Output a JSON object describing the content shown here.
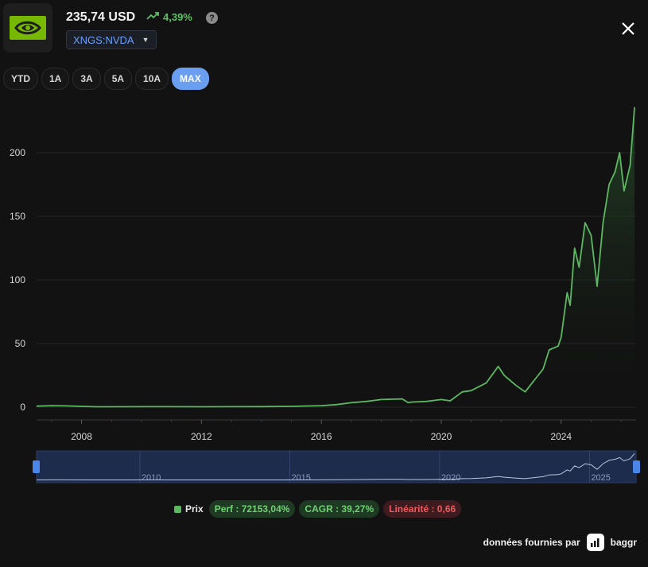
{
  "header": {
    "logo_icon": "nvidia-logo-icon",
    "price": "235,74 USD",
    "change": "4,39%",
    "change_icon": "trend-up-icon",
    "help_icon": "question-circle-icon",
    "ticker": "XNGS:NVDA",
    "ticker_caret_icon": "chevron-down-icon",
    "close_icon": "close-icon"
  },
  "ranges": [
    {
      "label": "YTD",
      "active": false
    },
    {
      "label": "1A",
      "active": false
    },
    {
      "label": "3A",
      "active": false
    },
    {
      "label": "5A",
      "active": false
    },
    {
      "label": "10A",
      "active": false
    },
    {
      "label": "MAX",
      "active": true
    }
  ],
  "chart_data": {
    "type": "area",
    "series": [
      {
        "name": "Prix",
        "color": "#5cb860",
        "x": [
          2006.5,
          2007.0,
          2007.5,
          2008.0,
          2008.5,
          2009.0,
          2010.0,
          2011.0,
          2012.0,
          2013.0,
          2014.0,
          2015.0,
          2016.0,
          2016.5,
          2017.0,
          2017.5,
          2018.0,
          2018.7,
          2018.9,
          2019.0,
          2019.5,
          2020.0,
          2020.3,
          2020.7,
          2021.0,
          2021.5,
          2021.9,
          2022.1,
          2022.5,
          2022.8,
          2023.0,
          2023.4,
          2023.6,
          2023.9,
          2024.0,
          2024.2,
          2024.3,
          2024.45,
          2024.6,
          2024.8,
          2025.0,
          2025.2,
          2025.4,
          2025.6,
          2025.8,
          2025.95,
          2026.1,
          2026.3,
          2026.45
        ],
        "y": [
          0.8,
          1.2,
          1.0,
          0.6,
          0.3,
          0.3,
          0.4,
          0.4,
          0.3,
          0.35,
          0.45,
          0.6,
          1.2,
          2.0,
          3.5,
          4.5,
          6.0,
          6.5,
          3.5,
          4.0,
          4.5,
          6.0,
          5.0,
          12.0,
          13.0,
          19.0,
          32.0,
          25.0,
          17.0,
          12.0,
          18.0,
          30.0,
          45.0,
          48.0,
          55.0,
          90.0,
          80.0,
          125.0,
          110.0,
          145.0,
          135.0,
          95.0,
          145.0,
          175.0,
          185.0,
          200.0,
          170.0,
          190.0,
          235.74
        ]
      }
    ],
    "y_ticks": [
      0,
      50,
      100,
      150,
      200
    ],
    "x_ticks": [
      2008,
      2012,
      2016,
      2020,
      2024
    ],
    "xlim": [
      2006.5,
      2026.5
    ],
    "ylim": [
      -10,
      245
    ],
    "grid": true,
    "navigator": {
      "x_ticks": [
        2010,
        2015,
        2020,
        2025
      ],
      "xlim": [
        2006.5,
        2026.5
      ]
    }
  },
  "footer": {
    "series_label": "Prix",
    "perf": "Perf : 72153,04%",
    "cagr": "CAGR : 39,27%",
    "linearity": "Linéarité : 0,66",
    "credit_text": "données fournies par",
    "credit_brand": "baggr",
    "credit_icon": "baggr-logo-icon"
  },
  "colors": {
    "accent": "#6a9ef0",
    "line": "#5cb860",
    "positive": "#5cc162",
    "negative": "#ee5a60"
  }
}
